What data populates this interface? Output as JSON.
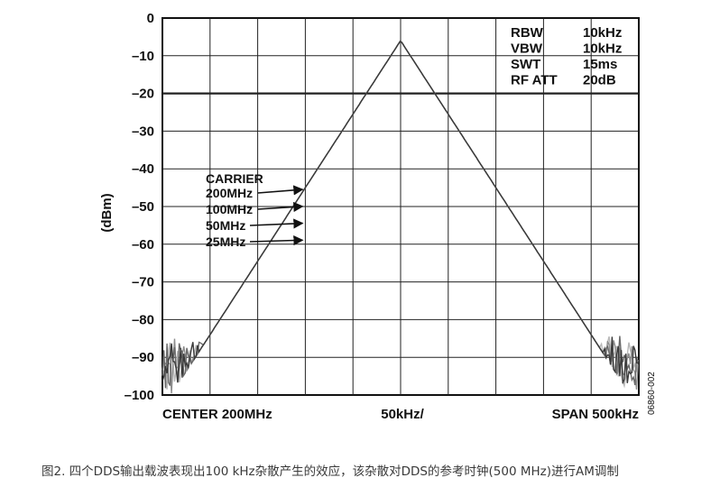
{
  "chart_data": {
    "type": "line",
    "ylabel": "(dBm)",
    "ylim": [
      -100,
      0
    ],
    "yticks": [
      "0",
      "–10",
      "–20",
      "–30",
      "–40",
      "–50",
      "–60",
      "–70",
      "–80",
      "–90",
      "–100"
    ],
    "x_labels": {
      "left": "CENTER 200MHz",
      "center": "50kHz/",
      "right": "SPAN 500kHz"
    },
    "span_khz": 500,
    "center_offset_khz": 0,
    "grid": true,
    "settings": [
      {
        "name": "RBW",
        "value": "10kHz"
      },
      {
        "name": "VBW",
        "value": "10kHz"
      },
      {
        "name": "SWT",
        "value": "15ms"
      },
      {
        "name": "RF ATT",
        "value": "20dB"
      }
    ],
    "carrier_peak_dbm": -6,
    "spur_offset_khz": 100,
    "series": [
      {
        "name": "200MHz",
        "spur_peak_dbm": -45,
        "color": "#b8b8b8"
      },
      {
        "name": "100MHz",
        "spur_peak_dbm": -49,
        "color": "#8e8e8e"
      },
      {
        "name": "50MHz",
        "spur_peak_dbm": -53,
        "color": "#6a6a6a"
      },
      {
        "name": "25MHz",
        "spur_peak_dbm": -57,
        "color": "#3a3a3a"
      }
    ],
    "annotation_title": "CARRIER",
    "figure_id": "06860-002"
  },
  "caption": "图2. 四个DDS输出载波表现出100 kHz杂散产生的效应，该杂散对DDS的参考时钟(500 MHz)进行AM调制"
}
